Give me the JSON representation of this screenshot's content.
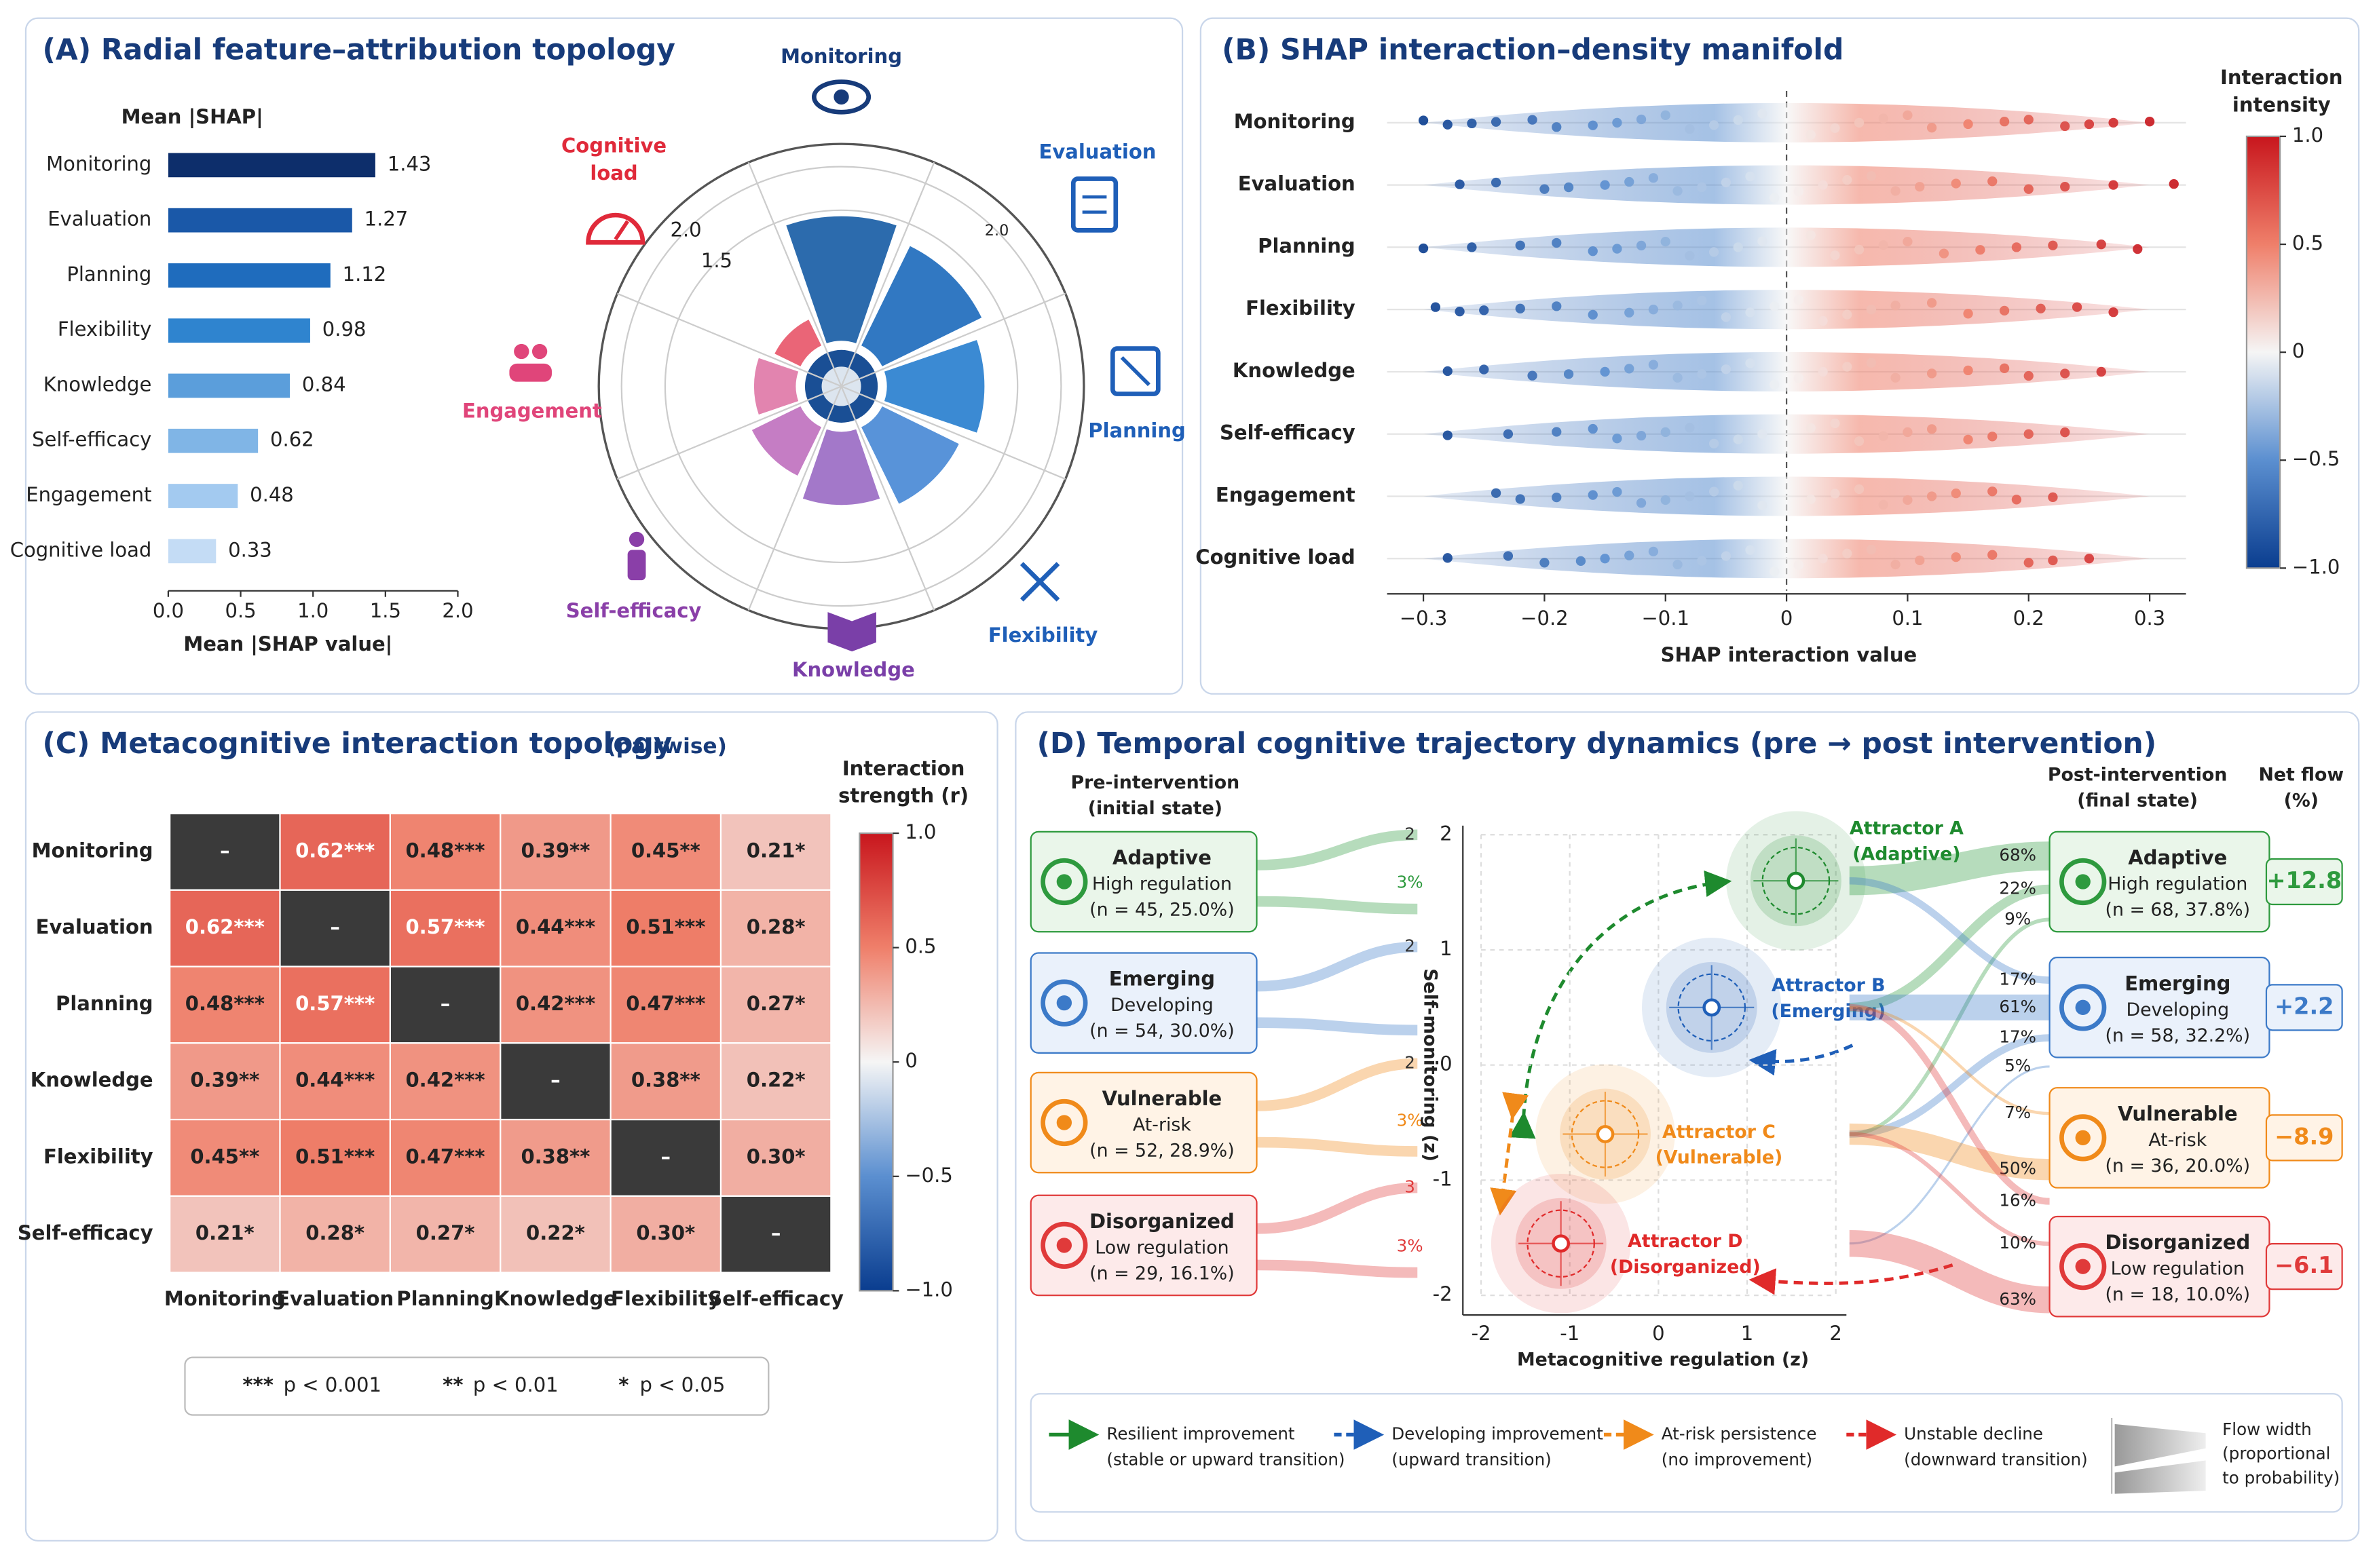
{
  "chart_data": [
    {
      "type": "hbar",
      "title": "(A) Radial feature–attribution topology",
      "header": "Mean |SHAP|",
      "xlabel": "Mean |SHAP value|",
      "categories": [
        "Monitoring",
        "Evaluation",
        "Planning",
        "Flexibility",
        "Knowledge",
        "Self-efficacy",
        "Engagement",
        "Cognitive load"
      ],
      "values": [
        1.43,
        1.27,
        1.12,
        0.98,
        0.84,
        0.62,
        0.48,
        0.33
      ],
      "colors": [
        "#0d2e6b",
        "#1a58a8",
        "#1f6cbd",
        "#2f84cf",
        "#5b9edb",
        "#80b5e6",
        "#a3caf0",
        "#c4dcf5"
      ],
      "xlim": [
        0,
        2
      ],
      "xticks": [
        {
          "value": 0,
          "label": "0.0"
        },
        0.5,
        {
          "value": 1,
          "label": "1.0"
        },
        1.5,
        {
          "value": 2,
          "label": "2.0"
        }
      ]
    },
    {
      "type": "polar",
      "categories": [
        [
          "Monitoring"
        ],
        [
          "Evaluation"
        ],
        [
          "Planning"
        ],
        [
          "Flexibility"
        ],
        [
          "Knowledge"
        ],
        [
          "Self-efficacy"
        ],
        [
          "Engagement"
        ],
        [
          "Cognitive",
          "load"
        ]
      ],
      "values": [
        1.43,
        1.27,
        1.12,
        0.98,
        0.84,
        0.62,
        0.48,
        0.33
      ],
      "colors": [
        "#1a5ea6",
        "#1f6cbd",
        "#2a80cf",
        "#4a8ad6",
        "#9b6cc4",
        "#c072bf",
        "#e07aa8",
        "#e8586b"
      ],
      "label_colors": [
        "#173b7a",
        "#1f5fb8",
        "#1f5fb8",
        "#1f5fb8",
        "#7a3fa8",
        "#8a3fa8",
        "#e0457a",
        "#e02a3a"
      ],
      "rlim": [
        0,
        2
      ],
      "rticks": [
        1.5,
        {
          "value": 2,
          "label": "2.0"
        }
      ]
    },
    {
      "type": "beeswarm",
      "title": "(B) SHAP interaction–density manifold",
      "xlabel": "SHAP interaction value",
      "categories": [
        "Monitoring",
        "Evaluation",
        "Planning",
        "Flexibility",
        "Knowledge",
        "Self-efficacy",
        "Engagement",
        "Cognitive load"
      ],
      "values": [
        [
          -0.3,
          -0.28,
          -0.26,
          -0.24,
          -0.21,
          -0.19,
          -0.16,
          -0.14,
          -0.12,
          -0.1,
          -0.08,
          -0.06,
          -0.04,
          -0.02,
          0.02,
          0.04,
          0.06,
          0.08,
          0.1,
          0.12,
          0.15,
          0.18,
          0.2,
          0.23,
          0.25,
          0.27,
          0.3
        ],
        [
          -0.27,
          -0.24,
          -0.2,
          -0.18,
          -0.15,
          -0.13,
          -0.11,
          -0.09,
          -0.07,
          -0.05,
          -0.03,
          -0.01,
          0.01,
          0.03,
          0.05,
          0.07,
          0.09,
          0.11,
          0.14,
          0.17,
          0.2,
          0.23,
          0.27,
          0.32
        ],
        [
          -0.3,
          -0.26,
          -0.22,
          -0.19,
          -0.16,
          -0.14,
          -0.12,
          -0.1,
          -0.08,
          -0.06,
          -0.04,
          -0.02,
          0.02,
          0.04,
          0.06,
          0.08,
          0.1,
          0.13,
          0.16,
          0.19,
          0.22,
          0.26,
          0.29
        ],
        [
          -0.29,
          -0.27,
          -0.25,
          -0.22,
          -0.19,
          -0.16,
          -0.13,
          -0.11,
          -0.09,
          -0.07,
          -0.05,
          -0.03,
          -0.01,
          0.01,
          0.03,
          0.05,
          0.07,
          0.09,
          0.12,
          0.15,
          0.18,
          0.21,
          0.24,
          0.27
        ],
        [
          -0.28,
          -0.25,
          -0.21,
          -0.18,
          -0.15,
          -0.13,
          -0.11,
          -0.09,
          -0.07,
          -0.05,
          -0.03,
          -0.01,
          0.01,
          0.03,
          0.05,
          0.07,
          0.09,
          0.12,
          0.15,
          0.18,
          0.2,
          0.23,
          0.26
        ],
        [
          -0.28,
          -0.23,
          -0.19,
          -0.16,
          -0.14,
          -0.12,
          -0.1,
          -0.08,
          -0.06,
          -0.04,
          -0.02,
          0.02,
          0.04,
          0.06,
          0.08,
          0.1,
          0.12,
          0.15,
          0.17,
          0.2,
          0.23
        ],
        [
          -0.24,
          -0.22,
          -0.19,
          -0.16,
          -0.14,
          -0.12,
          -0.1,
          -0.08,
          -0.06,
          -0.04,
          -0.02,
          0.02,
          0.04,
          0.06,
          0.08,
          0.1,
          0.12,
          0.14,
          0.17,
          0.19,
          0.22
        ],
        [
          -0.28,
          -0.23,
          -0.2,
          -0.17,
          -0.15,
          -0.13,
          -0.11,
          -0.09,
          -0.07,
          -0.05,
          -0.03,
          -0.01,
          0.01,
          0.03,
          0.05,
          0.07,
          0.09,
          0.11,
          0.14,
          0.17,
          0.2,
          0.22,
          0.25
        ]
      ],
      "xlim": [
        -0.33,
        0.33
      ],
      "xticks": [
        {
          "value": -0.3,
          "label": "−0.3"
        },
        {
          "value": -0.2,
          "label": "−0.2"
        },
        {
          "value": -0.1,
          "label": "−0.1"
        },
        0,
        0.1,
        0.2,
        0.3
      ],
      "colorbar": {
        "title": [
          "Interaction",
          "intensity"
        ],
        "lim": [
          -1,
          1
        ],
        "ticks": [
          {
            "value": 1,
            "label": "1.0"
          },
          0.5,
          0,
          {
            "value": -0.5,
            "label": "−0.5"
          },
          {
            "value": -1,
            "label": "−1.0"
          }
        ]
      }
    },
    {
      "type": "heatmap",
      "title": "(C) Metacognitive interaction topology",
      "title_note": "(pairwise)",
      "categories": [
        "Monitoring",
        "Evaluation",
        "Planning",
        "Knowledge",
        "Flexibility",
        "Self-efficacy"
      ],
      "values": [
        [
          null,
          0.62,
          0.48,
          0.39,
          0.45,
          0.21
        ],
        [
          0.62,
          null,
          0.57,
          0.44,
          0.51,
          0.28
        ],
        [
          0.48,
          0.57,
          null,
          0.42,
          0.47,
          0.27
        ],
        [
          0.39,
          0.44,
          0.42,
          null,
          0.38,
          0.22
        ],
        [
          0.45,
          0.51,
          0.47,
          0.38,
          null,
          0.3
        ],
        [
          0.21,
          0.28,
          0.27,
          0.22,
          0.3,
          null
        ]
      ],
      "value_labels": [
        [
          "–",
          "0.62***",
          "0.48***",
          "0.39**",
          "0.45**",
          "0.21*"
        ],
        [
          "0.62***",
          "–",
          "0.57***",
          "0.44***",
          "0.51***",
          "0.28*"
        ],
        [
          "0.48***",
          "0.57***",
          "–",
          "0.42***",
          "0.47***",
          "0.27*"
        ],
        [
          "0.39**",
          "0.44***",
          "0.42***",
          "–",
          "0.38**",
          "0.22*"
        ],
        [
          "0.45**",
          "0.51***",
          "0.47***",
          "0.38**",
          "–",
          "0.30*"
        ],
        [
          "0.21*",
          "0.28*",
          "0.27*",
          "0.22*",
          "0.30*",
          "–"
        ]
      ],
      "colorbar": {
        "title": [
          "Interaction",
          "strength (r)"
        ],
        "lim": [
          -1,
          1
        ],
        "ticks": [
          {
            "value": 1,
            "label": "1.0"
          },
          0.5,
          0,
          {
            "value": -0.5,
            "label": "−0.5"
          },
          {
            "value": -1,
            "label": "−1.0"
          }
        ]
      },
      "legend": [
        {
          "symbol": "***",
          "text": "p < 0.001"
        },
        {
          "symbol": "**",
          "text": "p < 0.01"
        },
        {
          "symbol": "*",
          "text": "p < 0.05"
        }
      ]
    },
    {
      "type": "trajectory",
      "title": "(D) Temporal cognitive trajectory dynamics (pre → post intervention)",
      "pre_header": [
        "Pre-intervention",
        "(initial state)"
      ],
      "post_header": [
        "Post-intervention",
        "(final state)"
      ],
      "net_header": [
        "Net flow",
        "(%)"
      ],
      "pre_states": [
        {
          "name": "Adaptive",
          "sub": "High regulation",
          "n": "(n = 45, 25.0%)",
          "color": "#2e9a3e",
          "bg": "#eaf6ea"
        },
        {
          "name": "Emerging",
          "sub": "Developing",
          "n": "(n = 54, 30.0%)",
          "color": "#3c7ac8",
          "bg": "#eaf1fb"
        },
        {
          "name": "Vulnerable",
          "sub": "At-risk",
          "n": "(n = 52, 28.9%)",
          "color": "#f08a1a",
          "bg": "#fff3e6"
        },
        {
          "name": "Disorganized",
          "sub": "Low regulation",
          "n": "(n = 29, 16.1%)",
          "color": "#e03a3a",
          "bg": "#fdeaea"
        }
      ],
      "left_labels": [
        "2",
        "3%",
        "2",
        "2",
        "3%",
        "3",
        "3%"
      ],
      "post_states": [
        {
          "name": "Adaptive",
          "sub": "High regulation",
          "n": "(n = 68, 37.8%)",
          "color": "#2e9a3e",
          "bg": "#eaf6ea",
          "inflows": [
            {
              "value": 68,
              "label": "68%"
            },
            {
              "value": 22,
              "label": "22%"
            },
            {
              "value": 9,
              "label": "9%"
            }
          ],
          "net_flow": {
            "value": 12.8,
            "label": "+12.8"
          }
        },
        {
          "name": "Emerging",
          "sub": "Developing",
          "n": "(n = 58, 32.2%)",
          "color": "#3c7ac8",
          "bg": "#eaf1fb",
          "inflows": [
            {
              "value": 17,
              "label": "17%"
            },
            {
              "value": 61,
              "label": "61%"
            },
            {
              "value": 17,
              "label": "17%"
            },
            {
              "value": 5,
              "label": "5%"
            }
          ],
          "net_flow": {
            "value": 2.2,
            "label": "+2.2"
          }
        },
        {
          "name": "Vulnerable",
          "sub": "At-risk",
          "n": "(n = 36, 20.0%)",
          "color": "#f08a1a",
          "bg": "#fff3e6",
          "inflows": [
            {
              "value": 7,
              "label": "7%"
            },
            {
              "value": 50,
              "label": "50%"
            }
          ],
          "net_flow": {
            "value": -8.9,
            "label": "−8.9"
          }
        },
        {
          "name": "Disorganized",
          "sub": "Low regulation",
          "n": "(n = 18, 10.0%)",
          "color": "#e03a3a",
          "bg": "#fdeaea",
          "inflows": [
            {
              "value": 16,
              "label": "16%"
            },
            {
              "value": 10,
              "label": "10%"
            },
            {
              "value": 63,
              "label": "63%"
            }
          ],
          "net_flow": {
            "value": -6.1,
            "label": "−6.1"
          }
        }
      ],
      "attractors": [
        {
          "name": "Attractor A",
          "state": "(Adaptive)",
          "x": 1.55,
          "y": 1.6,
          "color": "#1e8a2e"
        },
        {
          "name": "Attractor B",
          "state": "(Emerging)",
          "x": 0.6,
          "y": 0.5,
          "color": "#1f5fb8"
        },
        {
          "name": "Attractor C",
          "state": "(Vulnerable)",
          "x": -0.6,
          "y": -0.6,
          "color": "#f08a1a"
        },
        {
          "name": "Attractor D",
          "state": "(Disorganized)",
          "x": -1.1,
          "y": -1.55,
          "color": "#e02a2a"
        }
      ],
      "xlabel": "Metacognitive regulation (z)",
      "ylabel": "Self-monitoring (z)",
      "xlim": [
        -2,
        2
      ],
      "ylim": [
        -2,
        2
      ],
      "xticks": [
        -2,
        -1,
        0,
        1,
        2
      ],
      "yticks": [
        -2,
        -1,
        0,
        1,
        2
      ],
      "grid": true,
      "legend": [
        {
          "title": "Resilient improvement",
          "sub": "(stable or upward transition)",
          "color": "#1e8a2e"
        },
        {
          "title": "Developing improvement",
          "sub": "(upward transition)",
          "color": "#1f5fb8"
        },
        {
          "title": "At-risk persistence",
          "sub": "(no improvement)",
          "color": "#f08a1a"
        },
        {
          "title": "Unstable decline",
          "sub": "(downward transition)",
          "color": "#e02a2a"
        }
      ],
      "flow_note": [
        "Flow width",
        "(proportional",
        "to probability)"
      ]
    }
  ]
}
